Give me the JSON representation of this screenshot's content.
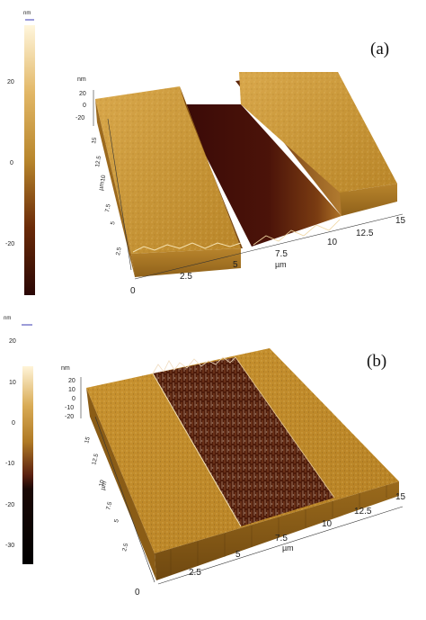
{
  "figure": {
    "panels": [
      {
        "id": "a",
        "label": "(a)",
        "colorbar": {
          "unit": "nm",
          "ticks": [
            "20",
            "0",
            "-20"
          ],
          "colors": {
            "top": "#fff6dc",
            "mid": "#b8862c",
            "low": "#6a2a08",
            "bottom": "#2a0705"
          }
        },
        "axes": {
          "z_unit": "nm",
          "z_ticks": [
            "20",
            "0",
            "-20"
          ],
          "y_unit": "µm",
          "y_ticks": [
            "15",
            "12.5",
            "10",
            "7.5",
            "5",
            "2.5"
          ],
          "x_unit": "µm",
          "x_ticks": [
            "0",
            "2.5",
            "5",
            "7.5",
            "10",
            "12.5",
            "15"
          ]
        }
      },
      {
        "id": "b",
        "label": "(b)",
        "colorbar": {
          "unit": "nm",
          "ticks": [
            "20",
            "10",
            "0",
            "-10",
            "-20",
            "-30"
          ],
          "colors": {
            "top": "#fff4d8",
            "mid": "#b07a25",
            "low": "#5a2010",
            "bottom": "#000000"
          }
        },
        "axes": {
          "z_unit": "nm",
          "z_ticks": [
            "20",
            "10",
            "0",
            "-10",
            "-20"
          ],
          "y_unit": "µm",
          "y_ticks": [
            "15",
            "12.5",
            "10",
            "7.5",
            "5",
            "2.5"
          ],
          "x_unit": "µm",
          "x_ticks": [
            "0",
            "2.5",
            "5",
            "7.5",
            "10",
            "12.5",
            "15"
          ]
        }
      }
    ]
  }
}
